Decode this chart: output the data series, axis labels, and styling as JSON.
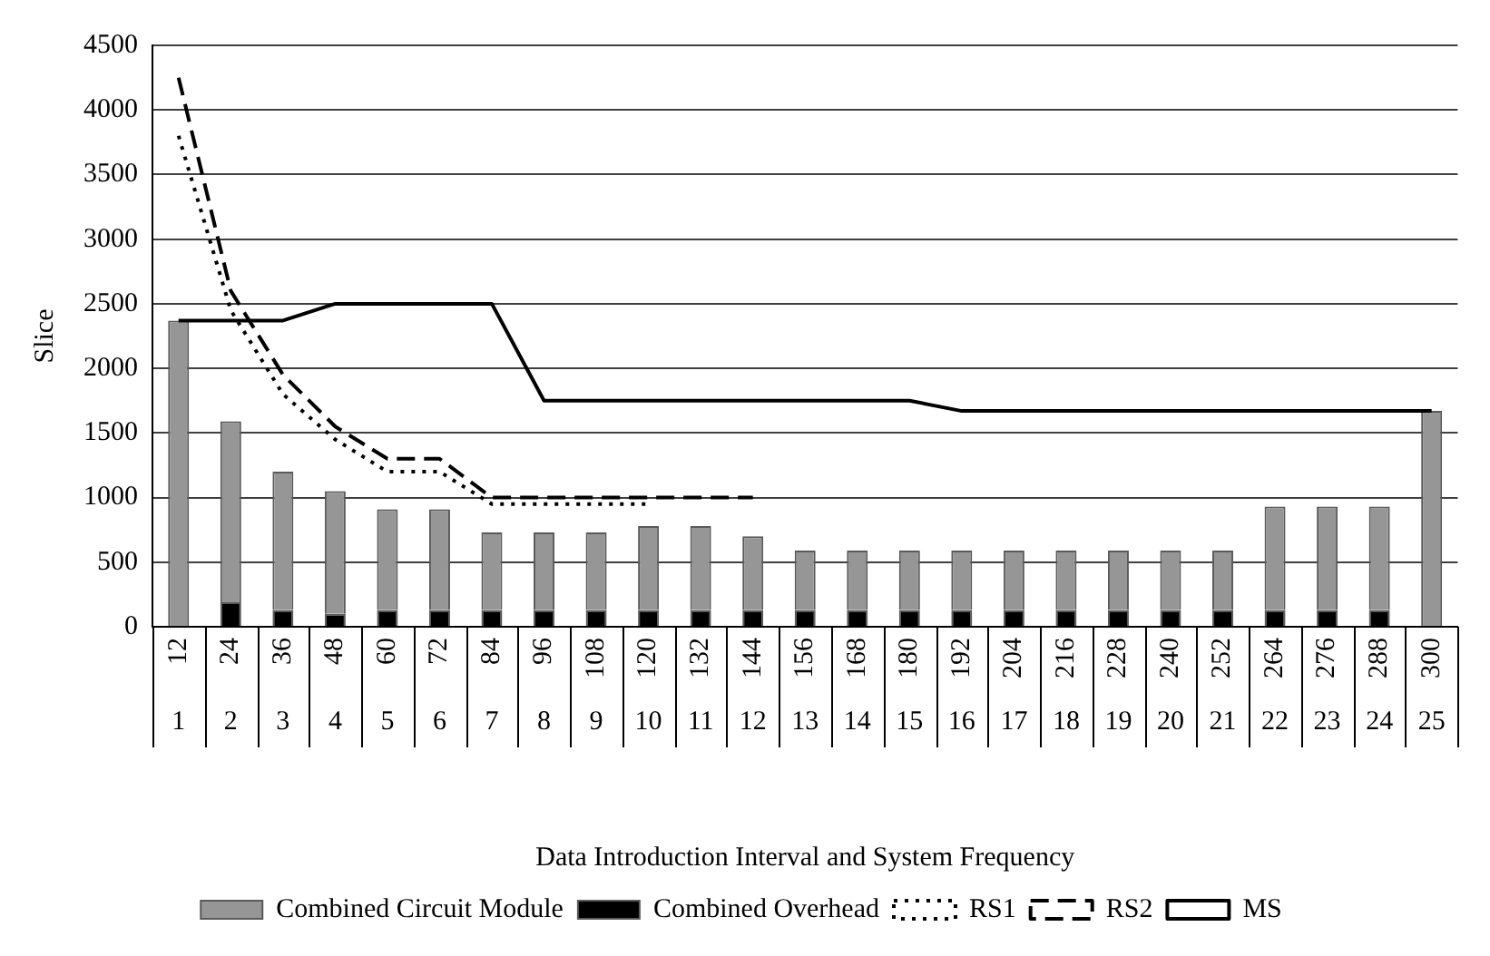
{
  "chart_data": {
    "type": "bar",
    "xlabel": "Data Introduction Interval and System Frequency",
    "ylabel": "Slice",
    "categories": [
      "12",
      "24",
      "36",
      "48",
      "60",
      "72",
      "84",
      "96",
      "108",
      "120",
      "132",
      "144",
      "156",
      "168",
      "180",
      "192",
      "204",
      "216",
      "228",
      "240",
      "252",
      "264",
      "276",
      "288",
      "300"
    ],
    "x2lim": [
      0.5,
      25.5
    ],
    "x2ticks": [
      1,
      2,
      3,
      4,
      5,
      6,
      7,
      8,
      9,
      10,
      11,
      12,
      13,
      14,
      15,
      16,
      17,
      18,
      19,
      20,
      21,
      22,
      23,
      24,
      25
    ],
    "ylim": [
      0,
      4500
    ],
    "yticks": [
      0,
      500,
      1000,
      1500,
      2000,
      2500,
      3000,
      3500,
      4000,
      4500
    ],
    "stacked": true,
    "grid": "y",
    "legend": "bottom",
    "marker": "none",
    "series": [
      {
        "name": "Combined Overhead",
        "color": "#000000",
        "values": [
          0,
          190,
          130,
          100,
          130,
          130,
          130,
          130,
          130,
          130,
          130,
          130,
          130,
          130,
          130,
          130,
          130,
          130,
          130,
          130,
          130,
          130,
          130,
          130,
          0
        ]
      },
      {
        "name": "Combined Circuit Module",
        "color": "#969696",
        "values": [
          2370,
          1400,
          1070,
          950,
          780,
          780,
          600,
          600,
          600,
          650,
          650,
          570,
          460,
          460,
          460,
          460,
          460,
          460,
          460,
          460,
          460,
          800,
          800,
          800,
          1670
        ]
      },
      {
        "name": "RS1",
        "type": "line",
        "color": "#000000",
        "line_style": "dotted",
        "values": [
          3800,
          2450,
          1800,
          1450,
          1200,
          1200,
          950,
          950,
          950,
          950,
          null,
          null,
          null,
          null,
          null,
          null,
          null,
          null,
          null,
          null,
          null,
          null,
          null,
          null,
          null
        ]
      },
      {
        "name": "RS2",
        "type": "line",
        "color": "#000000",
        "line_style": "dashed",
        "values": [
          4250,
          2600,
          1950,
          1550,
          1300,
          1300,
          1000,
          1000,
          1000,
          1000,
          1000,
          1000,
          null,
          null,
          null,
          null,
          null,
          null,
          null,
          null,
          null,
          null,
          null,
          null,
          null
        ]
      },
      {
        "name": "MS",
        "type": "line",
        "color": "#000000",
        "line_style": "solid",
        "values": [
          2370,
          2370,
          2370,
          2500,
          2500,
          2500,
          2500,
          1750,
          1750,
          1750,
          1750,
          1750,
          1750,
          1750,
          1750,
          1670,
          1670,
          1670,
          1670,
          1670,
          1670,
          1670,
          1670,
          1670,
          1670
        ]
      }
    ]
  }
}
